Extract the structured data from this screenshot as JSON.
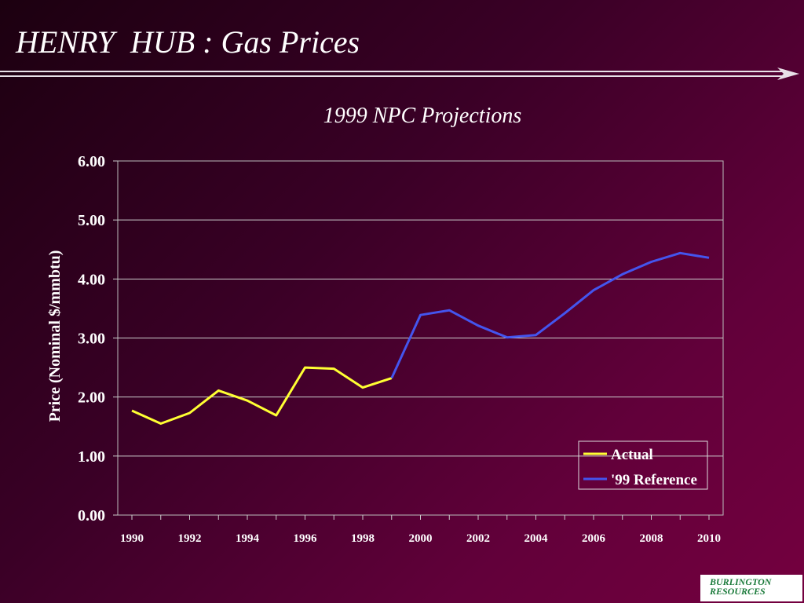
{
  "slide": {
    "title": "HENRY  HUB : Gas Prices",
    "logo_line1": "BURLINGTON",
    "logo_line2": "RESOURCES"
  },
  "colors": {
    "background": "#4a002c",
    "actual": "#ffff33",
    "reference": "#4455ee",
    "text": "#ffffff"
  },
  "chart_data": {
    "type": "line",
    "title": "1999 NPC Projections",
    "xlabel": "",
    "ylabel": "Price (Nominal $/mmbtu)",
    "xlim": [
      1990,
      2010
    ],
    "ylim": [
      0,
      6
    ],
    "xticks": [
      "1990",
      "1992",
      "1994",
      "1996",
      "1998",
      "2000",
      "2002",
      "2004",
      "2006",
      "2008",
      "2010"
    ],
    "yticks": [
      "0.00",
      "1.00",
      "2.00",
      "3.00",
      "4.00",
      "5.00",
      "6.00"
    ],
    "grid": true,
    "legend_position": "bottom-right",
    "series": [
      {
        "name": "Actual",
        "color": "#ffff33",
        "x": [
          1990,
          1991,
          1992,
          1993,
          1994,
          1995,
          1996,
          1997,
          1998,
          1999
        ],
        "y": [
          1.77,
          1.55,
          1.73,
          2.11,
          1.94,
          1.69,
          2.5,
          2.48,
          2.16,
          2.32
        ]
      },
      {
        "name": "'99 Reference",
        "color": "#4455ee",
        "x": [
          1999,
          2000,
          2001,
          2002,
          2003,
          2004,
          2005,
          2006,
          2007,
          2008,
          2009,
          2010
        ],
        "y": [
          2.32,
          3.39,
          3.47,
          3.21,
          3.01,
          3.05,
          3.42,
          3.81,
          4.08,
          4.29,
          4.44,
          4.36
        ]
      }
    ]
  }
}
